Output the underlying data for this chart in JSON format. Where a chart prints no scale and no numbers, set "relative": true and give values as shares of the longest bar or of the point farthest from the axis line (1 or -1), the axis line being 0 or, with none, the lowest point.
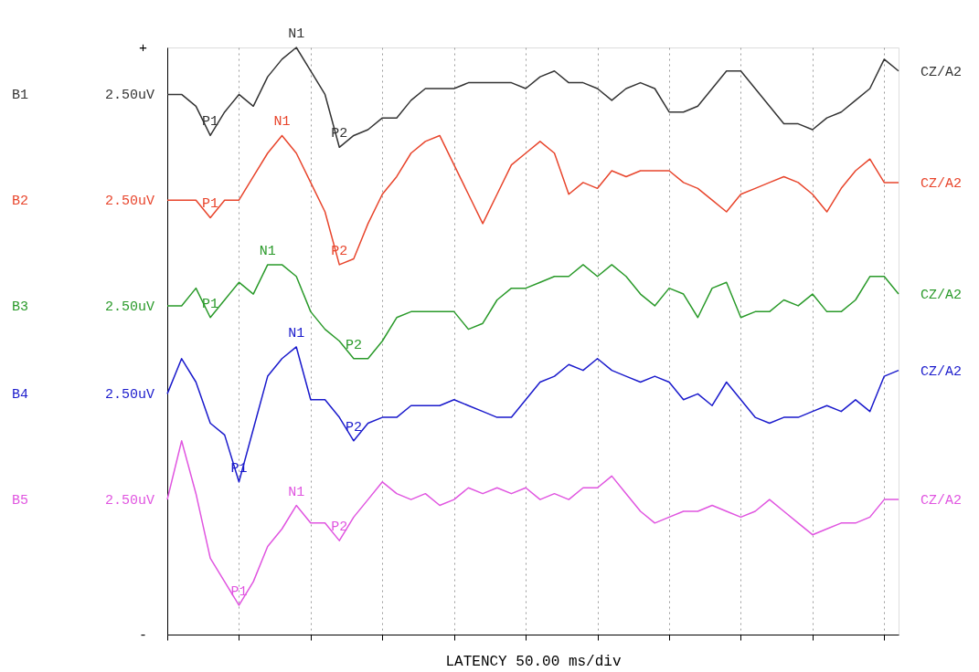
{
  "chart_data": {
    "type": "line",
    "relative": true,
    "xlabel": "LATENCY  50.00 ms/div",
    "categories": [
      null,
      null,
      null,
      null,
      null,
      null,
      null,
      null,
      null,
      null,
      null,
      null,
      null,
      null,
      null,
      null,
      null,
      null,
      null,
      null,
      null,
      null,
      null,
      null,
      null,
      null,
      null,
      null,
      null,
      null,
      null,
      null,
      null,
      null,
      null,
      null,
      null,
      null,
      null,
      null,
      null,
      null,
      null,
      null,
      null,
      null,
      null,
      null,
      null,
      null,
      null,
      null
    ],
    "grid": "x",
    "legend": false,
    "marker": "none",
    "line_style": "solid",
    "series": [
      {
        "name": "B1",
        "color": "#333333",
        "values": [
          0.92,
          0.92,
          0.9,
          0.85,
          0.89,
          0.92,
          0.9,
          0.95,
          0.98,
          1.0,
          0.96,
          0.92,
          0.83,
          0.85,
          0.86,
          0.88,
          0.88,
          0.91,
          0.93,
          0.93,
          0.93,
          0.94,
          0.94,
          0.94,
          0.94,
          0.93,
          0.95,
          0.96,
          0.94,
          0.94,
          0.93,
          0.91,
          0.93,
          0.94,
          0.93,
          0.89,
          0.89,
          0.9,
          0.93,
          0.96,
          0.96,
          0.93,
          0.9,
          0.87,
          0.87,
          0.86,
          0.88,
          0.89,
          0.91,
          0.93,
          0.98,
          0.96
        ]
      },
      {
        "name": "B2",
        "color": "#e8452c",
        "values": [
          0.74,
          0.74,
          0.74,
          0.71,
          0.74,
          0.74,
          0.78,
          0.82,
          0.85,
          0.82,
          0.77,
          0.72,
          0.63,
          0.64,
          0.7,
          0.75,
          0.78,
          0.82,
          0.84,
          0.85,
          0.8,
          0.75,
          0.7,
          0.75,
          0.8,
          0.82,
          0.84,
          0.82,
          0.75,
          0.77,
          0.76,
          0.79,
          0.78,
          0.79,
          0.79,
          0.79,
          0.77,
          0.76,
          0.74,
          0.72,
          0.75,
          0.76,
          0.77,
          0.78,
          0.77,
          0.75,
          0.72,
          0.76,
          0.79,
          0.81,
          0.77,
          0.77
        ]
      },
      {
        "name": "B3",
        "color": "#2a9a2a",
        "values": [
          0.56,
          0.56,
          0.59,
          0.54,
          0.57,
          0.6,
          0.58,
          0.63,
          0.63,
          0.61,
          0.55,
          0.52,
          0.5,
          0.47,
          0.47,
          0.5,
          0.54,
          0.55,
          0.55,
          0.55,
          0.55,
          0.52,
          0.53,
          0.57,
          0.59,
          0.59,
          0.6,
          0.61,
          0.61,
          0.63,
          0.61,
          0.63,
          0.61,
          0.58,
          0.56,
          0.59,
          0.58,
          0.54,
          0.59,
          0.6,
          0.54,
          0.55,
          0.55,
          0.57,
          0.56,
          0.58,
          0.55,
          0.55,
          0.57,
          0.61,
          0.61,
          0.58
        ]
      },
      {
        "name": "B4",
        "color": "#1a1acc",
        "values": [
          0.41,
          0.47,
          0.43,
          0.36,
          0.34,
          0.26,
          0.35,
          0.44,
          0.47,
          0.49,
          0.4,
          0.4,
          0.37,
          0.33,
          0.36,
          0.37,
          0.37,
          0.39,
          0.39,
          0.39,
          0.4,
          0.39,
          0.38,
          0.37,
          0.37,
          0.4,
          0.43,
          0.44,
          0.46,
          0.45,
          0.47,
          0.45,
          0.44,
          0.43,
          0.44,
          0.43,
          0.4,
          0.41,
          0.39,
          0.43,
          0.4,
          0.37,
          0.36,
          0.37,
          0.37,
          0.38,
          0.39,
          0.38,
          0.4,
          0.38,
          0.44,
          0.45
        ]
      },
      {
        "name": "B5",
        "color": "#e055e0",
        "values": [
          0.23,
          0.33,
          0.24,
          0.13,
          0.09,
          0.05,
          0.09,
          0.15,
          0.18,
          0.22,
          0.19,
          0.19,
          0.16,
          0.2,
          0.23,
          0.26,
          0.24,
          0.23,
          0.24,
          0.22,
          0.23,
          0.25,
          0.24,
          0.25,
          0.24,
          0.25,
          0.23,
          0.24,
          0.23,
          0.25,
          0.25,
          0.27,
          0.24,
          0.21,
          0.19,
          0.2,
          0.21,
          0.21,
          0.22,
          0.21,
          0.2,
          0.21,
          0.23,
          0.21,
          0.19,
          0.17,
          0.18,
          0.19,
          0.19,
          0.2,
          0.23,
          0.23
        ]
      }
    ],
    "annotations": [
      "+",
      "-",
      "2.50uV",
      "CZ/A2",
      "P1",
      "N1",
      "P2",
      "2.50uV",
      "CZ/A2",
      "P1",
      "N1",
      "P2",
      "2.50uV",
      "CZ/A2",
      "P1",
      "N1",
      "P2",
      "2.50uV",
      "CZ/A2",
      "P1",
      "N1",
      "P2",
      "2.50uV",
      "CZ/A2",
      "P1",
      "N1",
      "P2"
    ]
  }
}
